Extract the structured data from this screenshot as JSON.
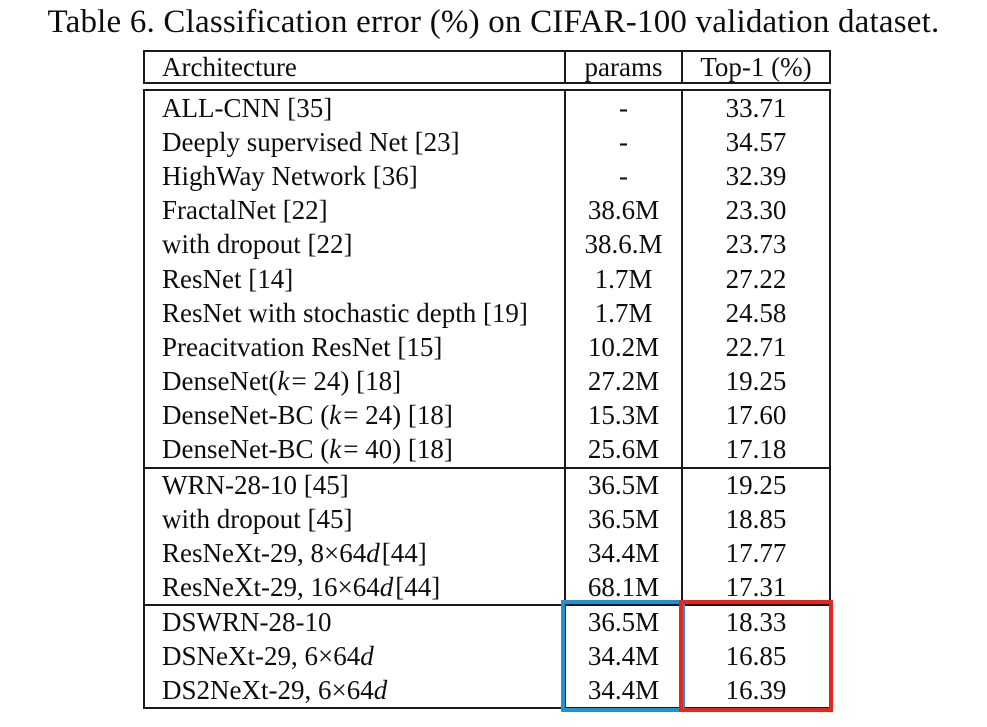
{
  "page": {
    "background": "#fffffe",
    "title": "Table 6. Classification error (%) on CIFAR-100 validation dataset."
  },
  "table": {
    "columns": [
      "Architecture",
      "params",
      "Top-1 (%)"
    ],
    "sections": [
      {
        "rows": [
          {
            "arch": [
              [
                "ALL-CNN [35]",
                0
              ]
            ],
            "params": "-",
            "top1": "33.71"
          },
          {
            "arch": [
              [
                "Deeply supervised Net [23]",
                0
              ]
            ],
            "params": "-",
            "top1": "34.57"
          },
          {
            "arch": [
              [
                "HighWay Network [36]",
                0
              ]
            ],
            "params": "-",
            "top1": "32.39"
          },
          {
            "arch": [
              [
                "FractalNet [22]",
                0
              ]
            ],
            "params": "38.6M",
            "top1": "23.30"
          },
          {
            "arch": [
              [
                "with dropout [22]",
                0
              ]
            ],
            "params": "38.6.M",
            "top1": "23.73"
          },
          {
            "arch": [
              [
                "ResNet [14]",
                0
              ]
            ],
            "params": "1.7M",
            "top1": "27.22"
          },
          {
            "arch": [
              [
                "ResNet with stochastic depth [19]",
                0
              ]
            ],
            "params": "1.7M",
            "top1": "24.58"
          },
          {
            "arch": [
              [
                "Preacitvation ResNet [15]",
                0
              ]
            ],
            "params": "10.2M",
            "top1": "22.71"
          },
          {
            "arch": [
              [
                "DenseNet(",
                0
              ],
              [
                "k",
                1
              ],
              [
                " = 24) [18]",
                0
              ]
            ],
            "params": "27.2M",
            "top1": "19.25"
          },
          {
            "arch": [
              [
                "DenseNet-BC (",
                0
              ],
              [
                "k",
                1
              ],
              [
                " = 24) [18]",
                0
              ]
            ],
            "params": "15.3M",
            "top1": "17.60"
          },
          {
            "arch": [
              [
                "DenseNet-BC (",
                0
              ],
              [
                "k",
                1
              ],
              [
                " = 40) [18]",
                0
              ]
            ],
            "params": "25.6M",
            "top1": "17.18"
          }
        ]
      },
      {
        "rows": [
          {
            "arch": [
              [
                "WRN-28-10 [45]",
                0
              ]
            ],
            "params": "36.5M",
            "top1": "19.25"
          },
          {
            "arch": [
              [
                "with dropout [45]",
                0
              ]
            ],
            "params": "36.5M",
            "top1": "18.85"
          },
          {
            "arch": [
              [
                "ResNeXt-29, 8×64",
                0
              ],
              [
                "d",
                1
              ],
              [
                " [44]",
                0
              ]
            ],
            "params": "34.4M",
            "top1": "17.77"
          },
          {
            "arch": [
              [
                "ResNeXt-29, 16×64",
                0
              ],
              [
                "d",
                1
              ],
              [
                " [44]",
                0
              ]
            ],
            "params": "68.1M",
            "top1": "17.31"
          }
        ]
      },
      {
        "rows": [
          {
            "arch": [
              [
                "DSWRN-28-10",
                0
              ]
            ],
            "params": "36.5M",
            "top1": "18.33"
          },
          {
            "arch": [
              [
                "DSNeXt-29, 6×64",
                0
              ],
              [
                "d",
                1
              ]
            ],
            "params": "34.4M",
            "top1": "16.85"
          },
          {
            "arch": [
              [
                "DS2NeXt-29, 6×64",
                0
              ],
              [
                "d",
                1
              ]
            ],
            "params": "34.4M",
            "top1": "16.39"
          }
        ]
      }
    ],
    "highlights": {
      "params_box": {
        "color": "#2191d4"
      },
      "top1_box": {
        "color": "#e8251d"
      }
    }
  }
}
